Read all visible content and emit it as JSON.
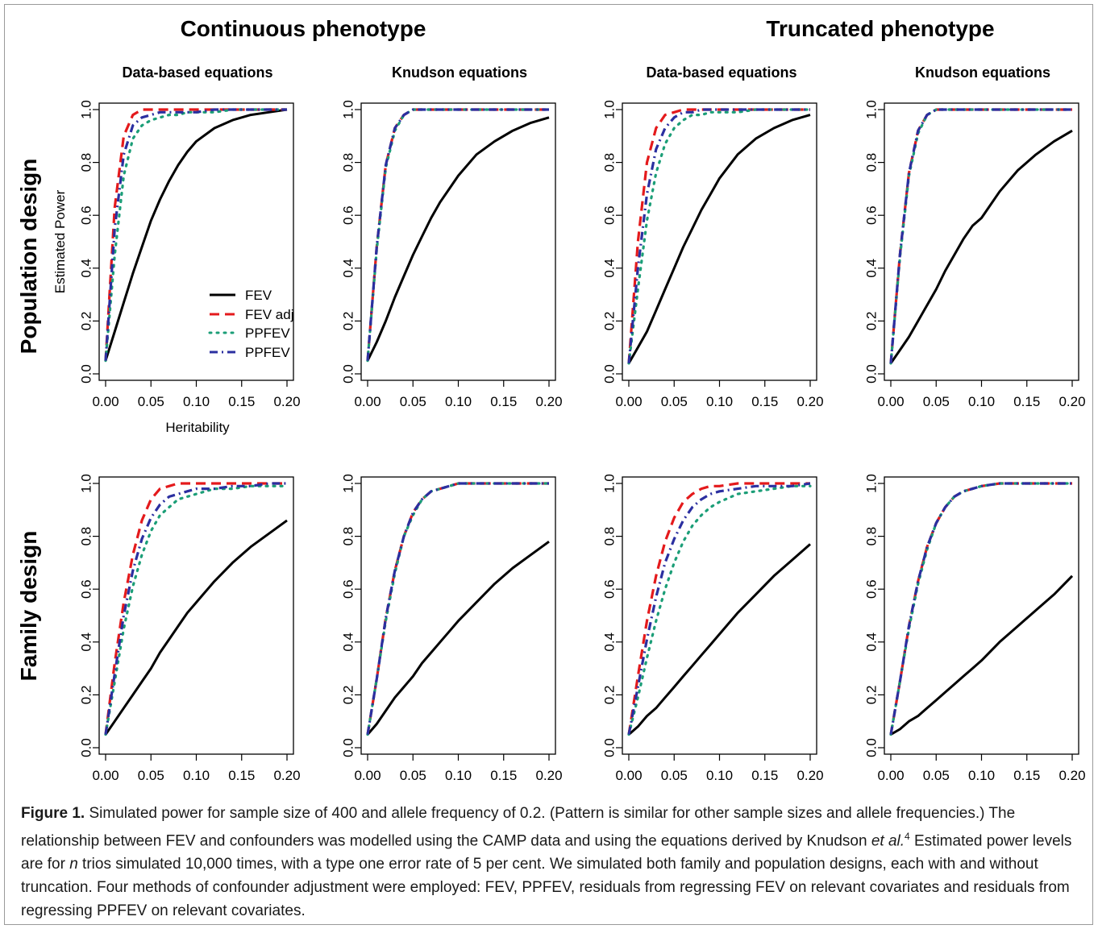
{
  "figure": {
    "group_titles": [
      "Continuous phenotype",
      "Truncated phenotype"
    ],
    "row_titles": [
      "Population design",
      "Family design"
    ],
    "panel_titles": [
      "Data-based equations",
      "Knudson equations",
      "Data-based equations",
      "Knudson equations"
    ],
    "caption": {
      "label": "Figure 1.",
      "text_a": " Simulated power for sample size of 400 and allele frequency of 0.2. (Pattern is similar for other sample sizes and allele frequencies.) The relationship between FEV and confounders was modelled using the CAMP data and using the equations derived by Knudson ",
      "et_al": "et al.",
      "ref": "4",
      "text_b": " Estimated power levels are for ",
      "n": "n",
      "text_c": " trios simulated 10,000 times, with a type one error rate of 5 per cent. We simulated both family and population designs, each with and without truncation. Four methods of confounder adjustment were employed: FEV, PPFEV, residuals from regressing FEV on relevant covariates and residuals from regressing PPFEV on relevant covariates."
    }
  },
  "chart_data": {
    "type": "line",
    "x": [
      0,
      0.01,
      0.02,
      0.03,
      0.04,
      0.05,
      0.06,
      0.07,
      0.08,
      0.09,
      0.1,
      0.12,
      0.14,
      0.16,
      0.18,
      0.2
    ],
    "xlim": [
      0,
      0.2
    ],
    "ylim": [
      0,
      1.0
    ],
    "x_ticks": [
      "0.00",
      "0.05",
      "0.10",
      "0.15",
      "0.20"
    ],
    "y_ticks": [
      "0.0",
      "0.2",
      "0.4",
      "0.6",
      "0.8",
      "1.0"
    ],
    "xlabel": "Heritability",
    "ylabel": "Estimated Power",
    "legend": {
      "placement": "bottom-right of top-left panel",
      "entries": [
        {
          "label": "FEV",
          "color": "#000000",
          "style": "solid"
        },
        {
          "label": "FEV adj",
          "color": "#e41a1c",
          "style": "dashed"
        },
        {
          "label": "PPFEV",
          "color": "#1b9e77",
          "style": "dotted"
        },
        {
          "label": "PPFEV",
          "color": "#2b2fa0",
          "style": "dotdash"
        }
      ]
    },
    "panels": [
      {
        "row": "Population design",
        "group": "Continuous phenotype",
        "title": "Data-based equations",
        "series": [
          {
            "name": "FEV",
            "values": [
              0.05,
              0.16,
              0.27,
              0.38,
              0.48,
              0.58,
              0.66,
              0.73,
              0.79,
              0.84,
              0.88,
              0.93,
              0.96,
              0.98,
              0.99,
              1.0
            ]
          },
          {
            "name": "FEV adj",
            "values": [
              0.05,
              0.63,
              0.9,
              0.98,
              1.0,
              1.0,
              1.0,
              1.0,
              1.0,
              1.0,
              1.0,
              1.0,
              1.0,
              1.0,
              1.0,
              1.0
            ]
          },
          {
            "name": "PPFEV",
            "values": [
              0.05,
              0.45,
              0.75,
              0.89,
              0.94,
              0.96,
              0.97,
              0.98,
              0.98,
              0.99,
              0.99,
              0.99,
              1.0,
              1.0,
              1.0,
              1.0
            ]
          },
          {
            "name": "PPFEV",
            "values": [
              0.05,
              0.55,
              0.83,
              0.94,
              0.97,
              0.98,
              0.99,
              0.99,
              0.99,
              0.99,
              0.99,
              1.0,
              1.0,
              1.0,
              1.0,
              1.0
            ]
          }
        ]
      },
      {
        "row": "Population design",
        "group": "Continuous phenotype",
        "title": "Knudson equations",
        "series": [
          {
            "name": "FEV",
            "values": [
              0.05,
              0.12,
              0.2,
              0.29,
              0.37,
              0.45,
              0.52,
              0.59,
              0.65,
              0.7,
              0.75,
              0.83,
              0.88,
              0.92,
              0.95,
              0.97
            ]
          },
          {
            "name": "FEV adj",
            "values": [
              0.05,
              0.48,
              0.79,
              0.93,
              0.98,
              1.0,
              1.0,
              1.0,
              1.0,
              1.0,
              1.0,
              1.0,
              1.0,
              1.0,
              1.0,
              1.0
            ]
          },
          {
            "name": "PPFEV",
            "values": [
              0.05,
              0.47,
              0.78,
              0.92,
              0.98,
              1.0,
              1.0,
              1.0,
              1.0,
              1.0,
              1.0,
              1.0,
              1.0,
              1.0,
              1.0,
              1.0
            ]
          },
          {
            "name": "PPFEV",
            "values": [
              0.05,
              0.48,
              0.79,
              0.93,
              0.98,
              1.0,
              1.0,
              1.0,
              1.0,
              1.0,
              1.0,
              1.0,
              1.0,
              1.0,
              1.0,
              1.0
            ]
          }
        ]
      },
      {
        "row": "Population design",
        "group": "Truncated phenotype",
        "title": "Data-based equations",
        "series": [
          {
            "name": "FEV",
            "values": [
              0.04,
              0.1,
              0.16,
              0.24,
              0.32,
              0.4,
              0.48,
              0.55,
              0.62,
              0.68,
              0.74,
              0.83,
              0.89,
              0.93,
              0.96,
              0.98
            ]
          },
          {
            "name": "FEV adj",
            "values": [
              0.04,
              0.5,
              0.8,
              0.93,
              0.98,
              0.99,
              1.0,
              1.0,
              1.0,
              1.0,
              1.0,
              1.0,
              1.0,
              1.0,
              1.0,
              1.0
            ]
          },
          {
            "name": "PPFEV",
            "values": [
              0.04,
              0.32,
              0.58,
              0.76,
              0.87,
              0.93,
              0.96,
              0.98,
              0.98,
              0.99,
              0.99,
              0.99,
              1.0,
              1.0,
              1.0,
              1.0
            ]
          },
          {
            "name": "PPFEV",
            "values": [
              0.04,
              0.4,
              0.68,
              0.85,
              0.93,
              0.97,
              0.99,
              0.99,
              1.0,
              1.0,
              1.0,
              1.0,
              1.0,
              1.0,
              1.0,
              1.0
            ]
          }
        ]
      },
      {
        "row": "Population design",
        "group": "Truncated phenotype",
        "title": "Knudson equations",
        "series": [
          {
            "name": "FEV",
            "values": [
              0.04,
              0.09,
              0.14,
              0.2,
              0.26,
              0.32,
              0.39,
              0.45,
              0.51,
              0.56,
              0.59,
              0.69,
              0.77,
              0.83,
              0.88,
              0.92
            ]
          },
          {
            "name": "FEV adj",
            "values": [
              0.04,
              0.45,
              0.76,
              0.92,
              0.98,
              1.0,
              1.0,
              1.0,
              1.0,
              1.0,
              1.0,
              1.0,
              1.0,
              1.0,
              1.0,
              1.0
            ]
          },
          {
            "name": "PPFEV",
            "values": [
              0.04,
              0.44,
              0.75,
              0.91,
              0.98,
              1.0,
              1.0,
              1.0,
              1.0,
              1.0,
              1.0,
              1.0,
              1.0,
              1.0,
              1.0,
              1.0
            ]
          },
          {
            "name": "PPFEV",
            "values": [
              0.04,
              0.45,
              0.76,
              0.92,
              0.98,
              1.0,
              1.0,
              1.0,
              1.0,
              1.0,
              1.0,
              1.0,
              1.0,
              1.0,
              1.0,
              1.0
            ]
          }
        ]
      },
      {
        "row": "Family design",
        "group": "Continuous phenotype",
        "title": "Data-based equations",
        "series": [
          {
            "name": "FEV",
            "values": [
              0.05,
              0.1,
              0.15,
              0.2,
              0.25,
              0.3,
              0.36,
              0.41,
              0.46,
              0.51,
              0.55,
              0.63,
              0.7,
              0.76,
              0.81,
              0.86
            ]
          },
          {
            "name": "FEV adj",
            "values": [
              0.05,
              0.32,
              0.55,
              0.73,
              0.86,
              0.94,
              0.98,
              0.99,
              1.0,
              1.0,
              1.0,
              1.0,
              1.0,
              1.0,
              1.0,
              1.0
            ]
          },
          {
            "name": "PPFEV",
            "values": [
              0.05,
              0.25,
              0.45,
              0.61,
              0.73,
              0.82,
              0.88,
              0.91,
              0.94,
              0.95,
              0.96,
              0.98,
              0.98,
              0.99,
              0.99,
              0.99
            ]
          },
          {
            "name": "PPFEV",
            "values": [
              0.05,
              0.28,
              0.5,
              0.67,
              0.79,
              0.87,
              0.92,
              0.95,
              0.96,
              0.97,
              0.98,
              0.98,
              0.99,
              0.99,
              1.0,
              1.0
            ]
          }
        ]
      },
      {
        "row": "Family design",
        "group": "Continuous phenotype",
        "title": "Knudson equations",
        "series": [
          {
            "name": "FEV",
            "values": [
              0.05,
              0.09,
              0.14,
              0.19,
              0.23,
              0.27,
              0.32,
              0.36,
              0.4,
              0.44,
              0.48,
              0.55,
              0.62,
              0.68,
              0.73,
              0.78
            ]
          },
          {
            "name": "FEV adj",
            "values": [
              0.05,
              0.26,
              0.49,
              0.67,
              0.8,
              0.89,
              0.94,
              0.97,
              0.98,
              0.99,
              1.0,
              1.0,
              1.0,
              1.0,
              1.0,
              1.0
            ]
          },
          {
            "name": "PPFEV",
            "values": [
              0.05,
              0.26,
              0.48,
              0.66,
              0.8,
              0.88,
              0.94,
              0.97,
              0.98,
              0.99,
              1.0,
              1.0,
              1.0,
              1.0,
              1.0,
              1.0
            ]
          },
          {
            "name": "PPFEV",
            "values": [
              0.05,
              0.26,
              0.49,
              0.67,
              0.8,
              0.89,
              0.94,
              0.97,
              0.98,
              0.99,
              1.0,
              1.0,
              1.0,
              1.0,
              1.0,
              1.0
            ]
          }
        ]
      },
      {
        "row": "Family design",
        "group": "Truncated phenotype",
        "title": "Data-based equations",
        "series": [
          {
            "name": "FEV",
            "values": [
              0.05,
              0.08,
              0.12,
              0.15,
              0.19,
              0.23,
              0.27,
              0.31,
              0.35,
              0.39,
              0.43,
              0.51,
              0.58,
              0.65,
              0.71,
              0.77
            ]
          },
          {
            "name": "FEV adj",
            "values": [
              0.05,
              0.27,
              0.48,
              0.65,
              0.78,
              0.87,
              0.93,
              0.96,
              0.98,
              0.99,
              0.99,
              1.0,
              1.0,
              1.0,
              1.0,
              1.0
            ]
          },
          {
            "name": "PPFEV",
            "values": [
              0.05,
              0.19,
              0.34,
              0.48,
              0.6,
              0.7,
              0.78,
              0.84,
              0.88,
              0.91,
              0.93,
              0.96,
              0.97,
              0.98,
              0.99,
              0.99
            ]
          },
          {
            "name": "PPFEV",
            "values": [
              0.05,
              0.23,
              0.41,
              0.57,
              0.7,
              0.79,
              0.86,
              0.91,
              0.94,
              0.96,
              0.97,
              0.98,
              0.99,
              0.99,
              0.99,
              1.0
            ]
          }
        ]
      },
      {
        "row": "Family design",
        "group": "Truncated phenotype",
        "title": "Knudson equations",
        "series": [
          {
            "name": "FEV",
            "values": [
              0.05,
              0.07,
              0.1,
              0.12,
              0.15,
              0.18,
              0.21,
              0.24,
              0.27,
              0.3,
              0.33,
              0.4,
              0.46,
              0.52,
              0.58,
              0.65
            ]
          },
          {
            "name": "FEV adj",
            "values": [
              0.05,
              0.25,
              0.46,
              0.63,
              0.76,
              0.85,
              0.91,
              0.95,
              0.97,
              0.98,
              0.99,
              1.0,
              1.0,
              1.0,
              1.0,
              1.0
            ]
          },
          {
            "name": "PPFEV",
            "values": [
              0.05,
              0.25,
              0.45,
              0.62,
              0.75,
              0.85,
              0.91,
              0.95,
              0.97,
              0.98,
              0.99,
              1.0,
              1.0,
              1.0,
              1.0,
              1.0
            ]
          },
          {
            "name": "PPFEV",
            "values": [
              0.05,
              0.25,
              0.46,
              0.63,
              0.76,
              0.85,
              0.91,
              0.95,
              0.97,
              0.98,
              0.99,
              1.0,
              1.0,
              1.0,
              1.0,
              1.0
            ]
          }
        ]
      }
    ]
  }
}
